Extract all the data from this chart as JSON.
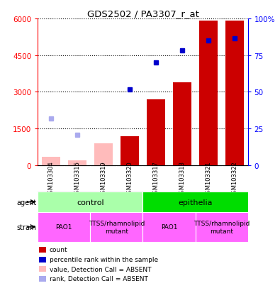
{
  "title": "GDS2502 / PA3307_r_at",
  "samples": [
    "GSM103304",
    "GSM103316",
    "GSM103319",
    "GSM103320",
    "GSM103317",
    "GSM103318",
    "GSM103321",
    "GSM103322"
  ],
  "count_values": [
    null,
    null,
    null,
    1200,
    2700,
    3400,
    5900,
    5900
  ],
  "count_absent_values": [
    350,
    200,
    900,
    null,
    null,
    null,
    null,
    null
  ],
  "rank_values": [
    null,
    null,
    null,
    3100,
    4200,
    4700,
    5100,
    5200
  ],
  "rank_absent_values": [
    1900,
    1250,
    null,
    null,
    null,
    null,
    null,
    null
  ],
  "ylim_left": [
    0,
    6000
  ],
  "yticks_left": [
    0,
    1500,
    3000,
    4500,
    6000
  ],
  "yticks_right": [
    0,
    25,
    50,
    75,
    100
  ],
  "ytick_labels_right": [
    "0",
    "25",
    "50",
    "75",
    "100%"
  ],
  "agent_groups": [
    {
      "label": "control",
      "span": [
        0,
        4
      ],
      "color": "#aaffaa"
    },
    {
      "label": "epithelia",
      "span": [
        4,
        8
      ],
      "color": "#00dd00"
    }
  ],
  "strain_groups": [
    {
      "label": "PAO1",
      "span": [
        0,
        2
      ],
      "color": "#ff66ff"
    },
    {
      "label": "TTSS/rhamnolipid\nmutant",
      "span": [
        2,
        4
      ],
      "color": "#ff66ff"
    },
    {
      "label": "PAO1",
      "span": [
        4,
        6
      ],
      "color": "#ff66ff"
    },
    {
      "label": "TTSS/rhamnolipid\nmutant",
      "span": [
        6,
        8
      ],
      "color": "#ff66ff"
    }
  ],
  "bar_color_count": "#cc0000",
  "bar_color_absent": "#ffbbbb",
  "dot_color_rank": "#0000cc",
  "dot_color_rank_absent": "#aaaaee",
  "bg_color": "#cccccc",
  "legend_items": [
    {
      "color": "#cc0000",
      "label": "count"
    },
    {
      "color": "#0000cc",
      "label": "percentile rank within the sample"
    },
    {
      "color": "#ffbbbb",
      "label": "value, Detection Call = ABSENT"
    },
    {
      "color": "#aaaaee",
      "label": "rank, Detection Call = ABSENT"
    }
  ]
}
